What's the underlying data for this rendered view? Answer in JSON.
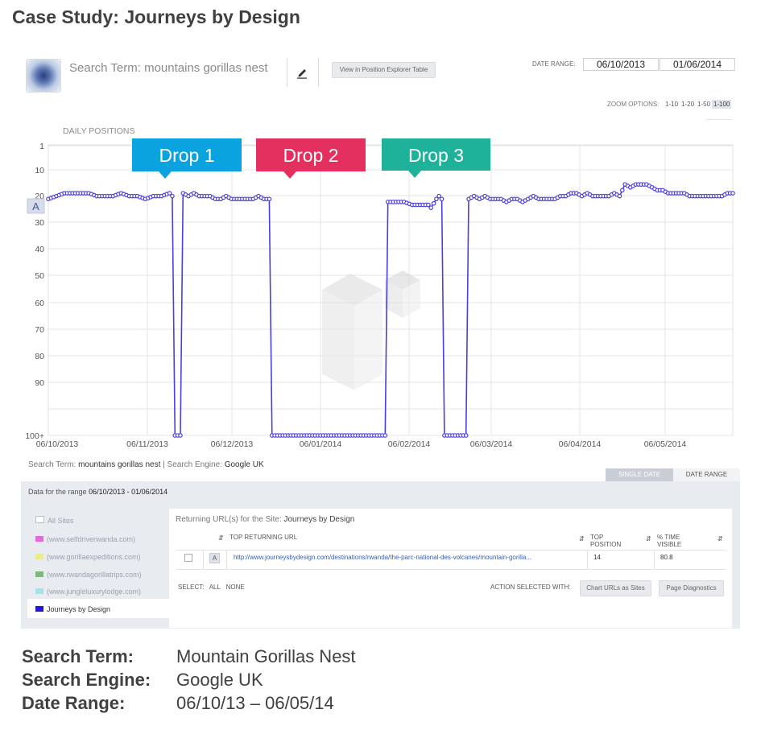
{
  "case_title": "Case Study: Journeys by Design",
  "header": {
    "search_term_label": "Search Term: mountains gorillas nest",
    "view_button": "View in Position Explorer Table",
    "date_range_label": "DATE RANGE:",
    "date_from": "06/10/2013",
    "date_to": "01/06/2014"
  },
  "zoom": {
    "label": "ZOOM OPTIONS:",
    "options": [
      "1-10",
      "1-20",
      "1-50",
      "1-100"
    ],
    "selected": "1-100"
  },
  "chart_title": "DAILY POSITIONS",
  "chart_data": {
    "type": "line",
    "y_tick_labels": [
      "1",
      "10",
      "20",
      "30",
      "40",
      "50",
      "60",
      "70",
      "80",
      "90",
      "100+"
    ],
    "y_range": [
      1,
      100
    ],
    "y_inverted": true,
    "x_tick_labels": [
      "06/10/2013",
      "06/11/2013",
      "06/12/2013",
      "06/01/2014",
      "06/02/2014",
      "06/03/2014",
      "06/04/2014",
      "06/05/2014"
    ],
    "x_range": [
      0,
      254
    ],
    "grid": true,
    "series": [
      {
        "color": "#4a3fdd",
        "points": [
          [
            0,
            19
          ],
          [
            3,
            18
          ],
          [
            6,
            17
          ],
          [
            9,
            17
          ],
          [
            12,
            17
          ],
          [
            15,
            17
          ],
          [
            18,
            18
          ],
          [
            21,
            18
          ],
          [
            24,
            18
          ],
          [
            27,
            17
          ],
          [
            30,
            18
          ],
          [
            33,
            18
          ],
          [
            36,
            19
          ],
          [
            39,
            18
          ],
          [
            42,
            18
          ],
          [
            45,
            17
          ],
          [
            46,
            18
          ],
          [
            47,
            100
          ],
          [
            48,
            100
          ],
          [
            49,
            100
          ],
          [
            50,
            17
          ],
          [
            52,
            18
          ],
          [
            54,
            17
          ],
          [
            56,
            18
          ],
          [
            58,
            18
          ],
          [
            60,
            18
          ],
          [
            62,
            19
          ],
          [
            64,
            19
          ],
          [
            66,
            18
          ],
          [
            68,
            19
          ],
          [
            70,
            19
          ],
          [
            72,
            19
          ],
          [
            74,
            19
          ],
          [
            76,
            19
          ],
          [
            78,
            18
          ],
          [
            80,
            19
          ],
          [
            82,
            19
          ],
          [
            83,
            100
          ],
          [
            92,
            100
          ],
          [
            101,
            100
          ],
          [
            110,
            100
          ],
          [
            119,
            100
          ],
          [
            125,
            100
          ],
          [
            126,
            20
          ],
          [
            129,
            20
          ],
          [
            132,
            20
          ],
          [
            135,
            21
          ],
          [
            138,
            21
          ],
          [
            141,
            21
          ],
          [
            142,
            22
          ],
          [
            144,
            19
          ],
          [
            145,
            18
          ],
          [
            146,
            19
          ],
          [
            147,
            100
          ],
          [
            150,
            100
          ],
          [
            153,
            100
          ],
          [
            155,
            100
          ],
          [
            156,
            19
          ],
          [
            158,
            18
          ],
          [
            160,
            19
          ],
          [
            162,
            18
          ],
          [
            164,
            19
          ],
          [
            166,
            19
          ],
          [
            168,
            19
          ],
          [
            170,
            20
          ],
          [
            172,
            19
          ],
          [
            174,
            19
          ],
          [
            176,
            20
          ],
          [
            178,
            19
          ],
          [
            180,
            18
          ],
          [
            182,
            19
          ],
          [
            184,
            19
          ],
          [
            186,
            19
          ],
          [
            188,
            19
          ],
          [
            190,
            18
          ],
          [
            192,
            18
          ],
          [
            194,
            17
          ],
          [
            196,
            17
          ],
          [
            198,
            18
          ],
          [
            200,
            17
          ],
          [
            202,
            18
          ],
          [
            204,
            18
          ],
          [
            206,
            18
          ],
          [
            208,
            18
          ],
          [
            210,
            17
          ],
          [
            212,
            18
          ],
          [
            214,
            14
          ],
          [
            216,
            15
          ],
          [
            218,
            14
          ],
          [
            220,
            14
          ],
          [
            222,
            14
          ],
          [
            224,
            15
          ],
          [
            226,
            16
          ],
          [
            228,
            16
          ],
          [
            230,
            17
          ],
          [
            232,
            17
          ],
          [
            234,
            17
          ],
          [
            236,
            17
          ],
          [
            238,
            18
          ],
          [
            240,
            18
          ],
          [
            242,
            18
          ],
          [
            244,
            18
          ],
          [
            246,
            18
          ],
          [
            248,
            18
          ],
          [
            250,
            18
          ],
          [
            252,
            17
          ],
          [
            254,
            17
          ]
        ]
      }
    ],
    "callouts": [
      {
        "label": "Drop 1",
        "color": "#0ba2e0"
      },
      {
        "label": "Drop 2",
        "color": "#e4305f"
      },
      {
        "label": "Drop 3",
        "color": "#1fb29b"
      }
    ]
  },
  "marker_label": "A",
  "subinfo": {
    "search_term_label": "Search Term:",
    "search_term_value": "mountains gorillas nest",
    "separator": "|",
    "engine_label": "Search Engine:",
    "engine_value": "Google UK"
  },
  "tabs": {
    "single": "SINGLE DATE",
    "range": "DATE RANGE"
  },
  "panel": {
    "range_prefix": "Data for the range",
    "range_value": "06/10/2013 - 01/06/2014",
    "sites": [
      {
        "label": "All Sites",
        "color": ""
      },
      {
        "label": "(www.selfdriverwanda.com)",
        "color": "#e36bd9"
      },
      {
        "label": "(www.gorillaexpeditions.com)",
        "color": "#ecea8e"
      },
      {
        "label": "(www.rwandagorillatrips.com)",
        "color": "#7fb77f"
      },
      {
        "label": "(www.jungleluxurylodge.com)",
        "color": "#9fe6ea"
      },
      {
        "label": "Journeys by Design",
        "color": "#2418d6"
      }
    ],
    "returning_prefix": "Returning URL(s) for the Site:",
    "returning_site": "Journeys by Design",
    "col_url": "TOP RETURNING URL",
    "col_pos_1": "TOP",
    "col_pos_2": "POSITION",
    "col_vis_1": "% TIME",
    "col_vis_2": "VISIBLE",
    "row": {
      "badge": "A",
      "url": "http://www.journeysbydesign.com/destinations/rwanda/the-parc-national-des-volcanes/mountain-gorilla...",
      "top_position": "14",
      "time_visible": "80.8"
    },
    "select_label": "SELECT:",
    "select_all": "ALL",
    "select_none": "NONE",
    "action_label": "ACTION SELECTED WITH:",
    "btn_chart": "Chart URLs as Sites",
    "btn_diag": "Page Diagnostics"
  },
  "summary": {
    "term_label": "Search Term:",
    "term_value": "Mountain Gorillas Nest",
    "engine_label": "Search Engine:",
    "engine_value": "Google UK",
    "range_label": "Date Range:",
    "range_value": "06/10/13 – 06/05/14"
  }
}
